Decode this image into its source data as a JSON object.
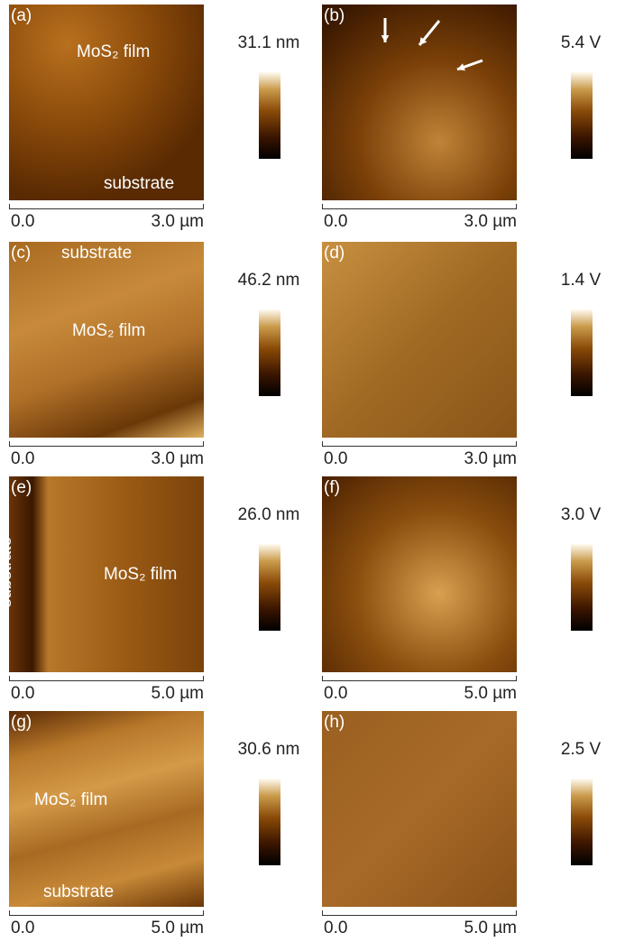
{
  "panels": [
    {
      "label": "(a)",
      "annotations": [
        "MoS₂ film",
        "substrate"
      ],
      "colorbar_label": "31.1 nm",
      "scale_start": "0.0",
      "scale_end": "3.0 µm"
    },
    {
      "label": "(b)",
      "annotations": [],
      "colorbar_label": "5.4 V",
      "scale_start": "0.0",
      "scale_end": "3.0 µm"
    },
    {
      "label": "(c)",
      "annotations": [
        "substrate",
        "MoS₂ film"
      ],
      "colorbar_label": "46.2 nm",
      "scale_start": "0.0",
      "scale_end": "3.0 µm"
    },
    {
      "label": "(d)",
      "annotations": [],
      "colorbar_label": "1.4 V",
      "scale_start": "0.0",
      "scale_end": "3.0 µm"
    },
    {
      "label": "(e)",
      "annotations": [
        "substrate",
        "MoS₂ film"
      ],
      "colorbar_label": "26.0 nm",
      "scale_start": "0.0",
      "scale_end": "5.0 µm"
    },
    {
      "label": "(f)",
      "annotations": [],
      "colorbar_label": "3.0 V",
      "scale_start": "0.0",
      "scale_end": "5.0 µm"
    },
    {
      "label": "(g)",
      "annotations": [
        "MoS₂ film",
        "substrate"
      ],
      "colorbar_label": "30.6 nm",
      "scale_start": "0.0",
      "scale_end": "5.0 µm"
    },
    {
      "label": "(h)",
      "annotations": [],
      "colorbar_label": "2.5 V",
      "scale_start": "0.0",
      "scale_end": "5.0 µm"
    }
  ]
}
